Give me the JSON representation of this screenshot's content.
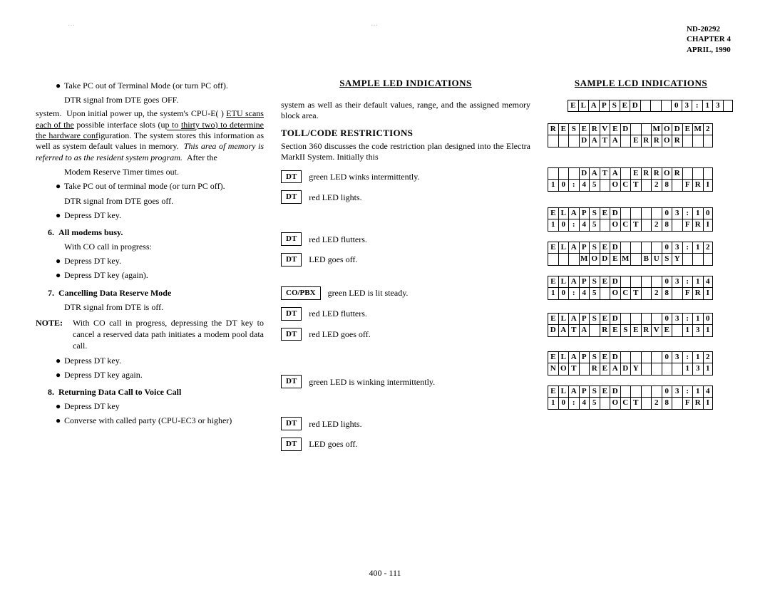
{
  "header": {
    "doc": "ND-20292",
    "chapter": "CHAPTER 4",
    "date": "APRIL, 1990"
  },
  "page_number": "400 - 111",
  "smudge1": "···",
  "smudge2": "···",
  "heading_led": "SAMPLE LED INDICATIONS",
  "heading_lcd": "SAMPLE LCD INDICATIONS",
  "toll_heading": "TOLL/CODE RESTRICTIONS",
  "left": {
    "b1": "Take PC out of Terminal Mode (or turn PC off).",
    "p1": "DTR signal from DTE goes OFF.",
    "frag": "system.  Upon initial power up, the system's CPU-E( ) ETU scans each of the possible interface slots (up to thirty two) to determine the hardware configuration. The system stores this information as well as system default values in memory.  This area of memory is referred to as the resident system program.  After the",
    "p2": "Modem Reserve Timer times out.",
    "b2": "Take PC out of terminal mode (or turn PC off).",
    "p3": "DTR signal from DTE goes off.",
    "b3": "Depress DT key.",
    "n6_num": "6.",
    "n6_title": "All modems busy.",
    "p4": "With CO call in progress:",
    "b4": "Depress DT key.",
    "b5": "Depress DT key (again).",
    "n7_num": "7.",
    "n7_title": "Cancelling Data Reserve Mode",
    "p5": "DTR signal from DTE is off.",
    "note_lbl": "NOTE:",
    "note_body": "With CO call in progress, depressing the DT key to cancel a reserved data path initiates a modem pool data call.",
    "b6": "Depress DT key.",
    "b7": "Depress DT key again.",
    "n8_num": "8.",
    "n8_title": "Returning Data Call to Voice Call",
    "b8": "Depress DT key",
    "b9": "Converse with called party (CPU-EC3 or higher)"
  },
  "mid_frag_top": "system as well as their default values, range, and the assigned memory block area.",
  "mid_frag_toll": "Section 360 discusses the code restriction plan designed into the Electra MarkII System.  Initially this",
  "led": [
    {
      "box": "DT",
      "txt": "green LED winks intermittently."
    },
    {
      "box": "DT",
      "txt": "red LED lights."
    },
    {
      "box": "DT",
      "txt": "red LED flutters."
    },
    {
      "box": "DT",
      "txt": "LED goes off."
    },
    {
      "box": "CO/PBX",
      "txt": "green LED is lit steady."
    },
    {
      "box": "DT",
      "txt": "red LED flutters."
    },
    {
      "box": "DT",
      "txt": "red LED goes off."
    },
    {
      "box": "DT",
      "txt": "green LED is winking intermittently."
    },
    {
      "box": "DT",
      "txt": "red LED lights."
    },
    {
      "box": "DT",
      "txt": "LED goes off."
    }
  ],
  "lcd": [
    {
      "rows": [
        "ELAPSED   03:13"
      ],
      "offset": true
    },
    {
      "rows": [
        "RESERVED  MODEM2",
        "   DATA ERROR   "
      ]
    },
    {
      "rows": [
        "   DATA ERROR   ",
        "10:45 OCT 28 FRI"
      ]
    },
    {
      "rows": [
        "ELAPSED    03:10",
        "10:45 OCT 28 FRI"
      ]
    },
    {
      "rows": [
        "ELAPSED    03:12",
        "   MODEM BUSY   "
      ]
    },
    {
      "rows": [
        "ELAPSED    03:14",
        "10:45 OCT 28 FRI"
      ]
    },
    {
      "rows": [
        "ELAPSED    03:10",
        "DATA RESERVE 131"
      ]
    },
    {
      "rows": [
        "ELAPSED    03:12",
        "NOT READY    131"
      ]
    },
    {
      "rows": [
        "ELAPSED    03:14",
        "10:45 OCT 28 FRI"
      ]
    }
  ]
}
